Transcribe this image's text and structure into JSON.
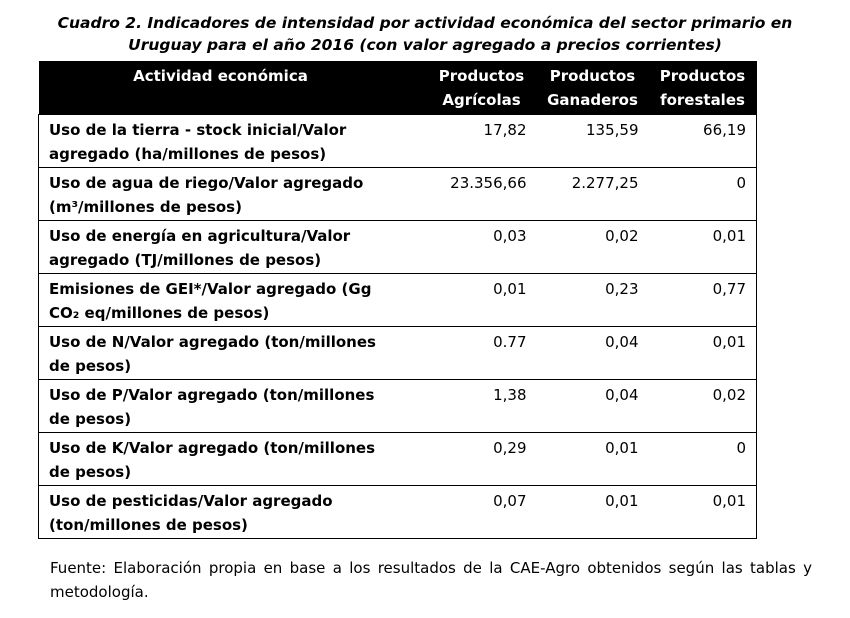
{
  "caption": {
    "line1": "Cuadro 2.  Indicadores de intensidad por actividad económica del sector primario en",
    "line2": "Uruguay para el año 2016 (con valor agregado a precios corrientes)"
  },
  "table": {
    "headers": {
      "activity": "Actividad económica",
      "agri_1": "Productos",
      "agri_2": "Agrícolas",
      "gan_1": "Productos",
      "gan_2": "Ganaderos",
      "for_1": "Productos",
      "for_2": "forestales"
    },
    "rows": [
      {
        "label_1": "Uso de la tierra - stock inicial/Valor",
        "label_2": "agregado (ha/millones de pesos)",
        "agricolas": "17,82",
        "ganaderos": "135,59",
        "forestales": "66,19"
      },
      {
        "label_1": "Uso de agua de riego/Valor agregado",
        "label_2": "(m³/millones de pesos)",
        "agricolas": "23.356,66",
        "ganaderos": "2.277,25",
        "forestales": "0"
      },
      {
        "label_1": "Uso de energía en agricultura/Valor",
        "label_2": "agregado (TJ/millones de pesos)",
        "agricolas": "0,03",
        "ganaderos": "0,02",
        "forestales": "0,01"
      },
      {
        "label_1": "Emisiones de GEI*/Valor agregado (Gg",
        "label_2": "CO₂ eq/millones de pesos)",
        "agricolas": "0,01",
        "ganaderos": "0,23",
        "forestales": "0,77"
      },
      {
        "label_1": "Uso de N/Valor agregado (ton/millones",
        "label_2": "de pesos)",
        "agricolas": "0.77",
        "ganaderos": "0,04",
        "forestales": "0,01"
      },
      {
        "label_1": "Uso de P/Valor agregado (ton/millones",
        "label_2": "de pesos)",
        "agricolas": "1,38",
        "ganaderos": "0,04",
        "forestales": "0,02"
      },
      {
        "label_1": "Uso de K/Valor agregado (ton/millones",
        "label_2": "de pesos)",
        "agricolas": "0,29",
        "ganaderos": "0,01",
        "forestales": "0"
      },
      {
        "label_1": "Uso de pesticidas/Valor agregado",
        "label_2": "(ton/millones de pesos)",
        "agricolas": "0,07",
        "ganaderos": "0,01",
        "forestales": "0,01"
      }
    ]
  },
  "note": "Fuente: Elaboración propia en base a los resultados de la CAE-Agro obtenidos según las tablas y metodología."
}
